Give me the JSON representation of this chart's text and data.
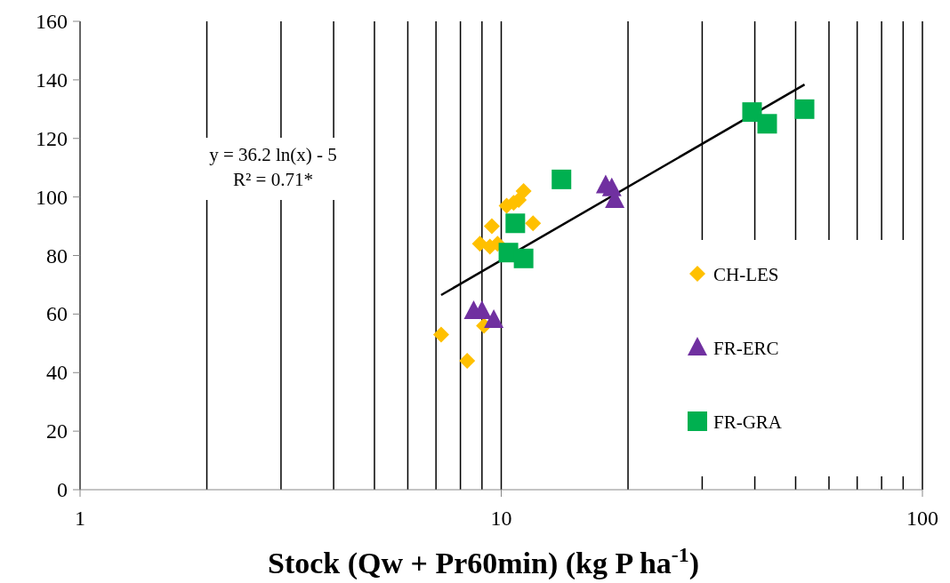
{
  "chart_data": {
    "type": "scatter",
    "log": "x",
    "xlabel": "Stock (Qw + Pr60min) (kg P ha$^{-1}$)",
    "xlim": [
      1,
      100
    ],
    "xticks": [
      1,
      {
        "value": 2,
        "label": null
      },
      {
        "value": 3,
        "label": null
      },
      {
        "value": 4,
        "label": null
      },
      {
        "value": 5,
        "label": null
      },
      {
        "value": 6,
        "label": null
      },
      {
        "value": 7,
        "label": null
      },
      {
        "value": 8,
        "label": null
      },
      {
        "value": 9,
        "label": null
      },
      10,
      {
        "value": 20,
        "label": null
      },
      {
        "value": 30,
        "label": null
      },
      {
        "value": 40,
        "label": null
      },
      {
        "value": 50,
        "label": null
      },
      {
        "value": 60,
        "label": null
      },
      {
        "value": 70,
        "label": null
      },
      {
        "value": 80,
        "label": null
      },
      {
        "value": 90,
        "label": null
      },
      100
    ],
    "ylim": [
      0,
      160
    ],
    "yticks": [
      0,
      20,
      40,
      60,
      80,
      100,
      120,
      140,
      160
    ],
    "grid": "x",
    "legend": "right",
    "annotations": [
      "y = 36.2 ln(x) - 5\nR² = 0.71*"
    ],
    "series": [
      {
        "name": "CH-LES",
        "color": "#ffc000",
        "marker": "diamond",
        "x": [
          7.2,
          8.3,
          9.1,
          8.9,
          9.4,
          9.8,
          9.5,
          10.3,
          10.7,
          11.0,
          11.3,
          11.9
        ],
        "values": [
          53,
          44,
          56,
          84,
          83,
          84,
          90,
          97,
          98,
          99,
          102,
          91
        ]
      },
      {
        "name": "FR-ERC",
        "color": "#7030a0",
        "marker": "triangle",
        "x": [
          8.6,
          9.0,
          9.6,
          17.7,
          18.3,
          18.6
        ],
        "values": [
          61,
          61,
          58,
          104,
          103,
          99
        ]
      },
      {
        "name": "FR-GRA",
        "color": "#00b050",
        "marker": "square",
        "x": [
          13.9,
          10.8,
          10.4,
          11.3,
          39.4,
          42.8,
          52.5
        ],
        "values": [
          106,
          91,
          81,
          79,
          129,
          125,
          130
        ]
      },
      {
        "type": "line",
        "color": "#000000",
        "marker": "none",
        "x": [
          7.2,
          52.5
        ],
        "values": [
          66.5,
          138.4
        ]
      }
    ]
  }
}
